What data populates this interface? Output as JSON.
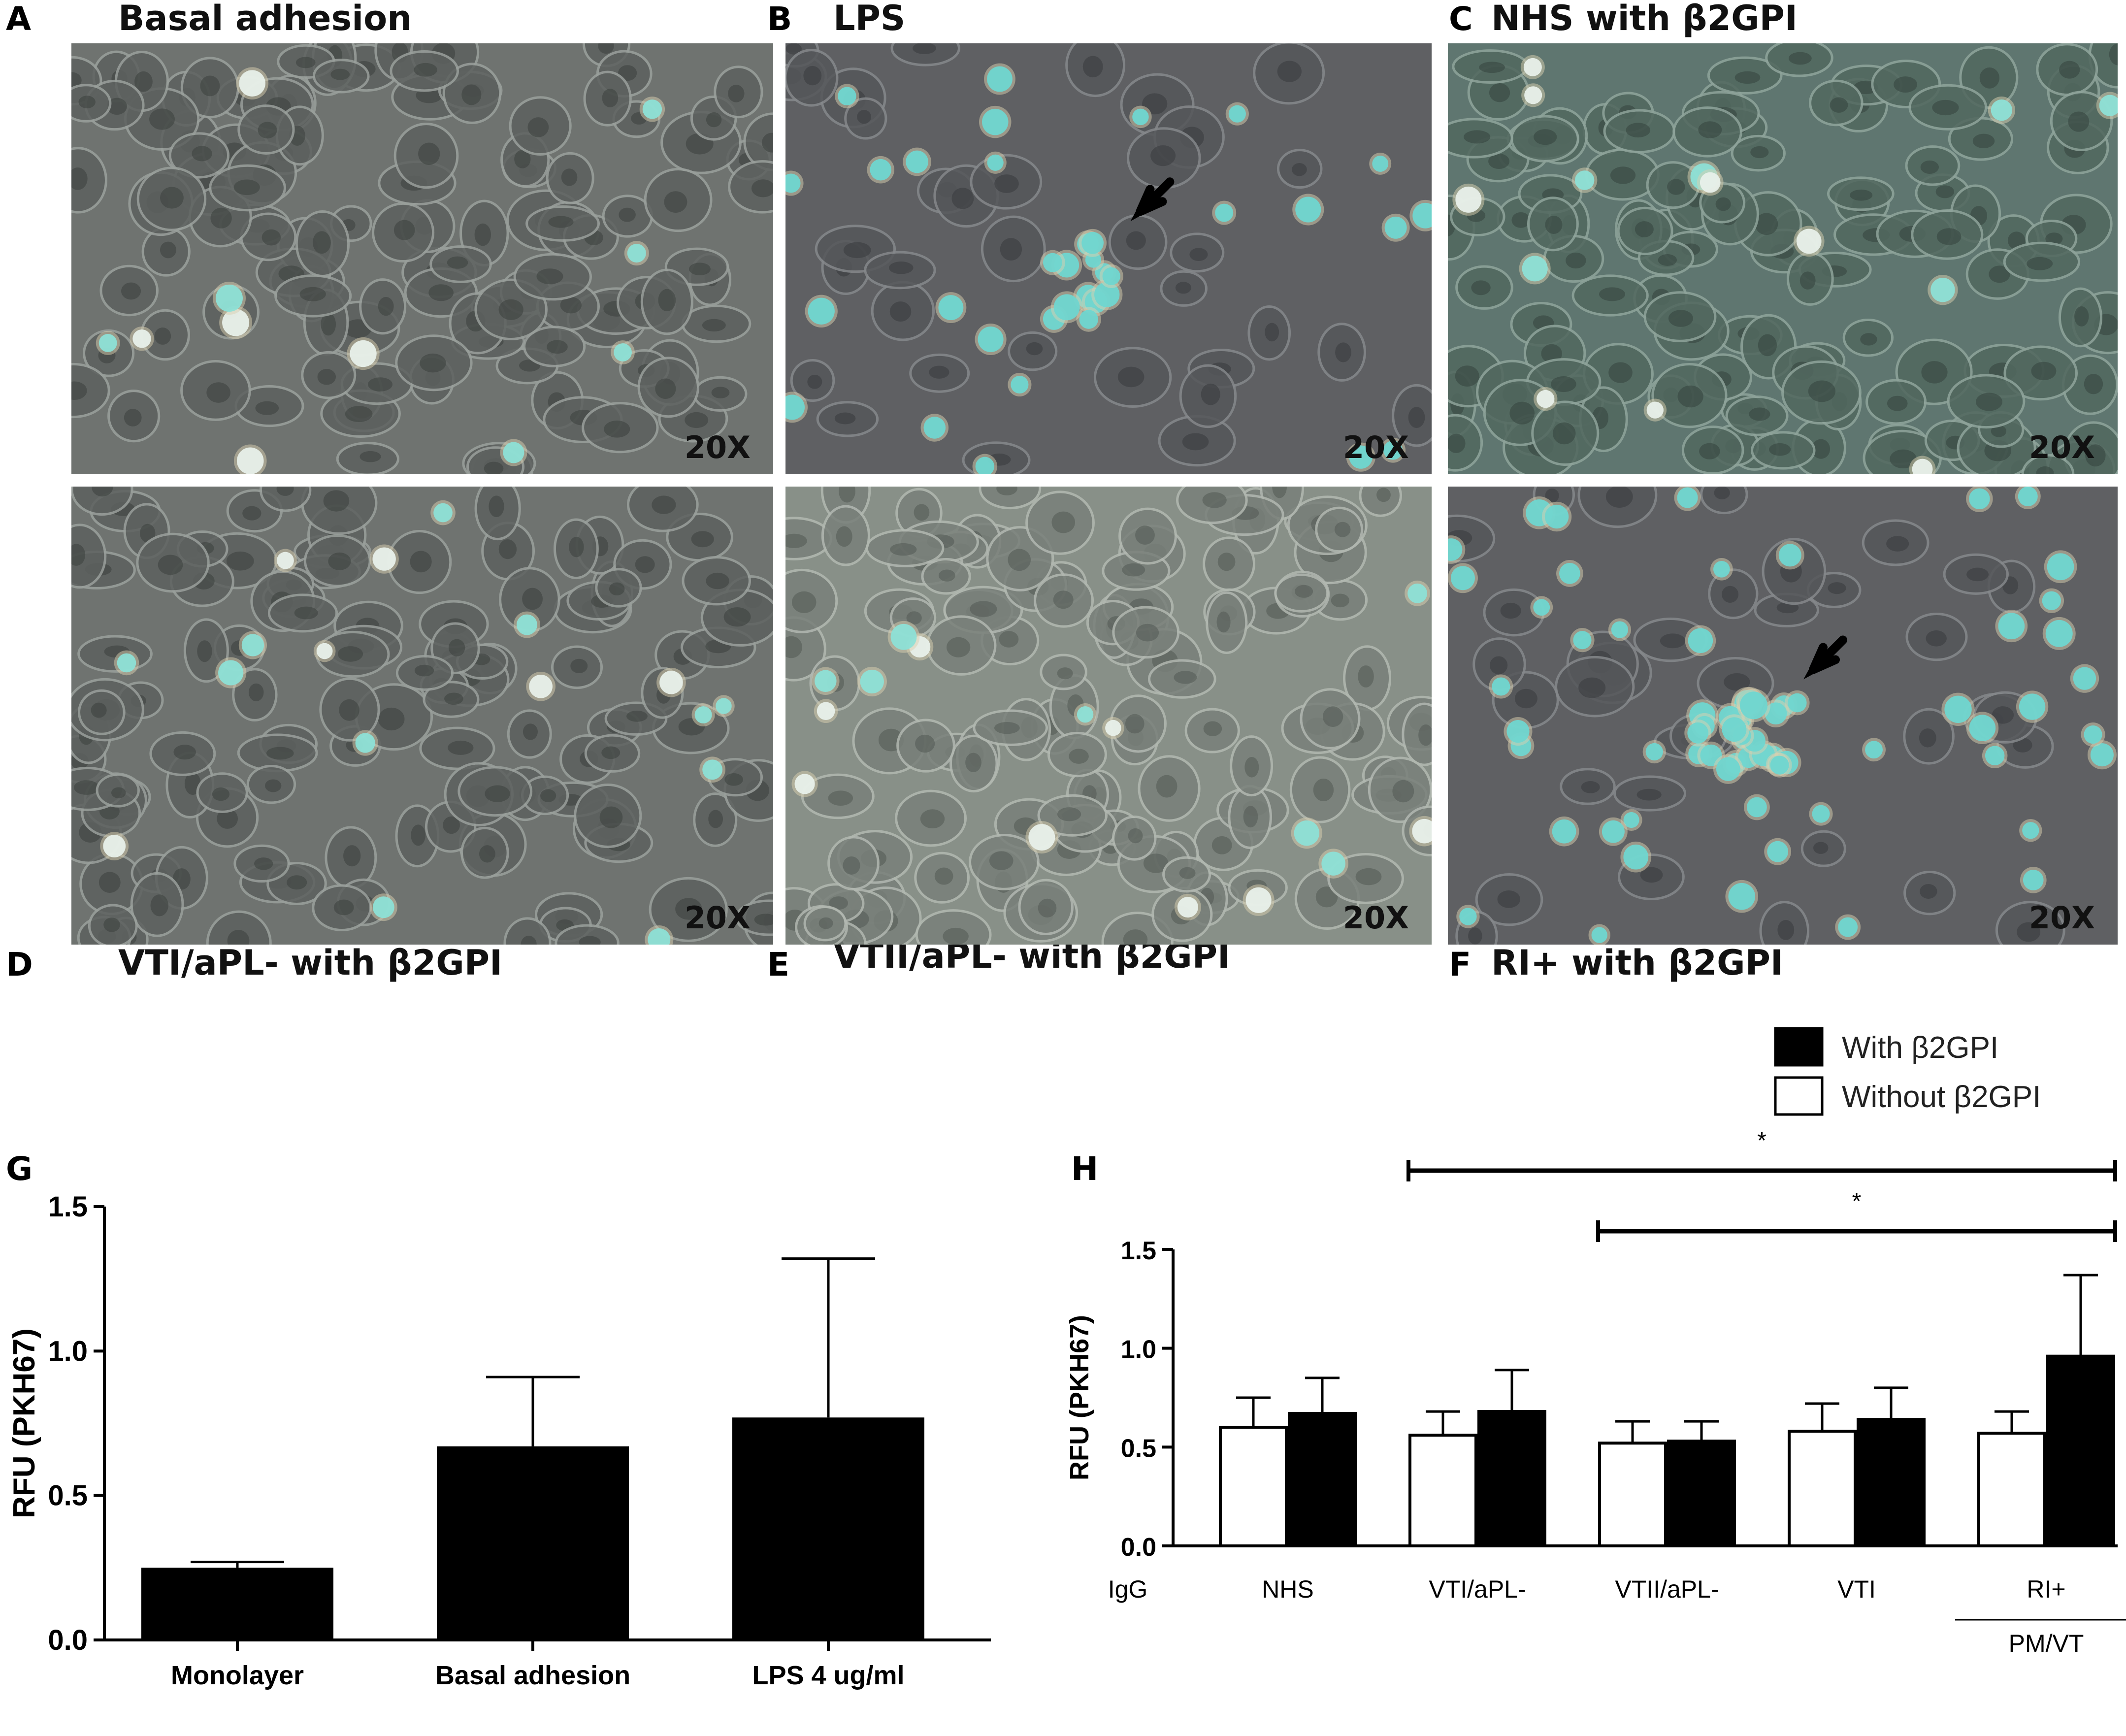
{
  "panels": [
    {
      "letter": "A",
      "title": "Basal adhesion",
      "magnification": "20X",
      "theme": "gray",
      "bead_count": 11
    },
    {
      "letter": "B",
      "title": "LPS",
      "magnification": "20X",
      "theme": "dark",
      "bead_count": 36,
      "arrow": true
    },
    {
      "letter": "C",
      "title": "NHS with β2GPI",
      "magnification": "20X",
      "theme": "green",
      "bead_count": 14
    },
    {
      "letter": "D",
      "title": "VTI/aPL- with β2GPI",
      "magnification": "20X",
      "theme": "gray",
      "bead_count": 17
    },
    {
      "letter": "E",
      "title": "VTII/aPL- with β2GPI",
      "magnification": "20X",
      "theme": "light",
      "bead_count": 15
    },
    {
      "letter": "F",
      "title": "RI+ with β2GPI",
      "magnification": "20X",
      "theme": "dark",
      "bead_count": 70,
      "arrow": true
    }
  ],
  "chart_data": [
    {
      "panel": "G",
      "type": "bar",
      "ylabel": "RFU (PKH67)",
      "ylim": [
        0,
        1.5
      ],
      "yticks": [
        "0.0",
        "0.5",
        "1.0",
        "1.5"
      ],
      "categories": [
        "Monolayer",
        "Basal adhesion",
        "LPS 4 ug/ml"
      ],
      "values": [
        0.25,
        0.67,
        0.77
      ],
      "errors": [
        0.02,
        0.24,
        0.55
      ],
      "color": "#000000"
    },
    {
      "panel": "H",
      "type": "bar",
      "ylabel": "RFU (PKH67)",
      "ylim": [
        0,
        1.5
      ],
      "yticks": [
        "0.0",
        "0.5",
        "1.0",
        "1.5"
      ],
      "axis_prefix": "IgG",
      "categories": [
        "NHS",
        "VTI/aPL-",
        "VTII/aPL-",
        "VTI",
        "RI+"
      ],
      "subgroup_label": "PM/VT",
      "series": [
        {
          "name": "Without β2GPI",
          "color": "#ffffff",
          "values": [
            0.6,
            0.56,
            0.52,
            0.58,
            0.57
          ],
          "errors": [
            0.15,
            0.12,
            0.11,
            0.14,
            0.11
          ]
        },
        {
          "name": "With β2GPI",
          "color": "#000000",
          "values": [
            0.67,
            0.68,
            0.53,
            0.64,
            0.96
          ],
          "errors": [
            0.18,
            0.21,
            0.1,
            0.16,
            0.41
          ]
        }
      ],
      "significance": [
        {
          "label": "*",
          "from_category": 1,
          "to_category": 4
        },
        {
          "label": "*",
          "from_category": 2,
          "to_category": 4
        }
      ],
      "legend_position": "top-right"
    }
  ]
}
